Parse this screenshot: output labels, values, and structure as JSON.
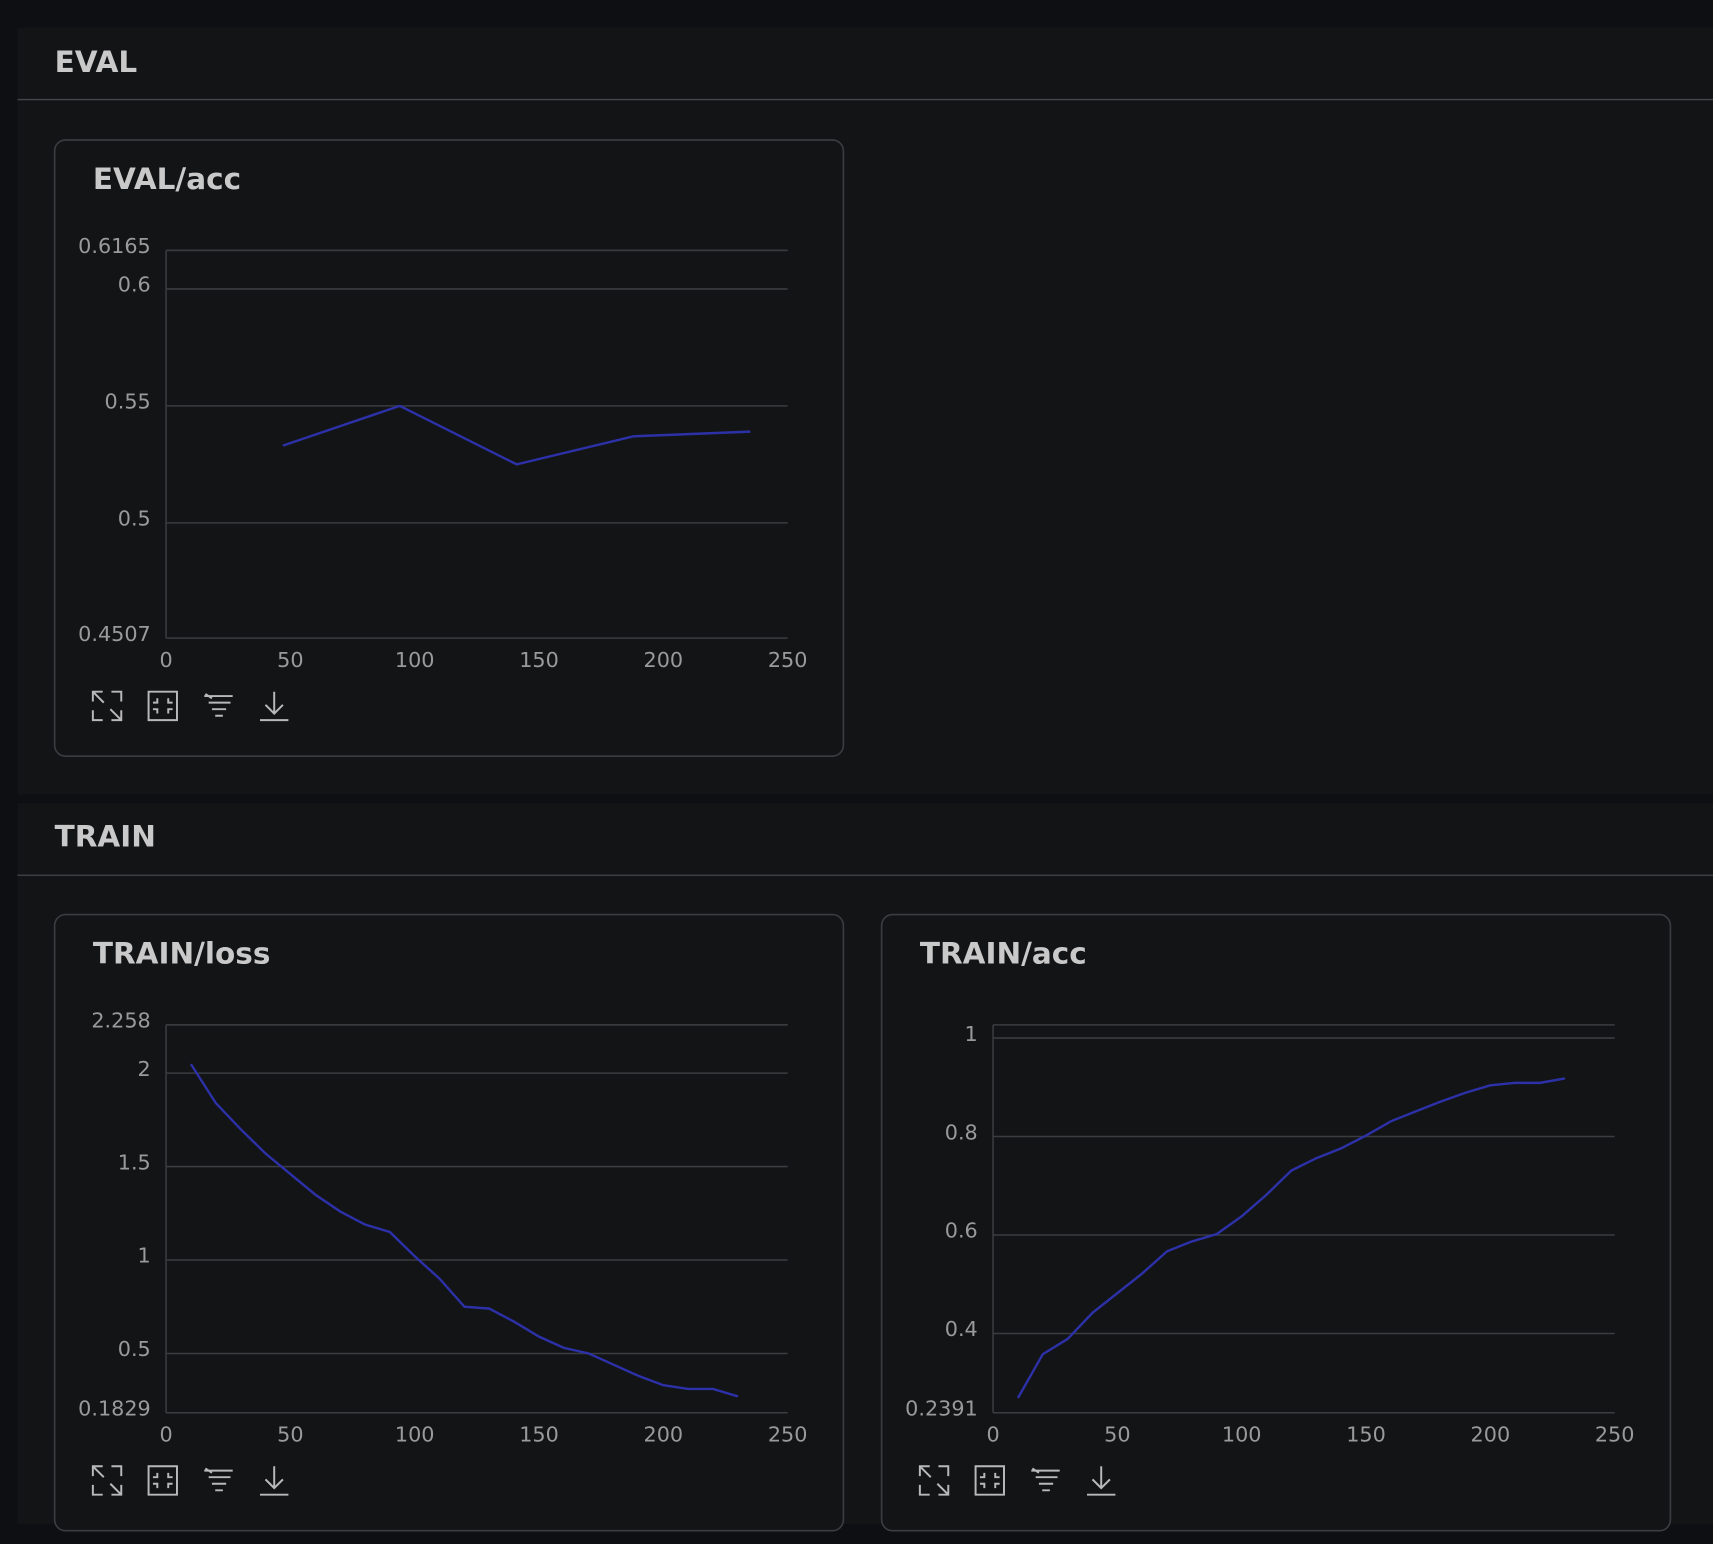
{
  "sections": [
    {
      "title": "EVAL"
    },
    {
      "title": "TRAIN"
    }
  ],
  "chart_data": [
    {
      "type": "line",
      "title": "EVAL/acc",
      "color": "#2d31a8",
      "grid": true,
      "x": [
        47,
        94,
        141,
        188,
        235
      ],
      "values": [
        0.533,
        0.55,
        0.525,
        0.537,
        0.539
      ],
      "xlim": [
        0,
        250
      ],
      "xticks": [
        0,
        50,
        100,
        150,
        200,
        250
      ],
      "ylim": [
        0.4507,
        0.6165
      ],
      "yticks": [
        0.4507,
        0.5,
        0.55,
        0.6,
        0.6165
      ]
    },
    {
      "type": "line",
      "title": "TRAIN/loss",
      "color": "#2d31a8",
      "grid": true,
      "x": [
        10,
        20,
        30,
        40,
        50,
        60,
        70,
        80,
        90,
        100,
        110,
        120,
        130,
        140,
        150,
        160,
        170,
        180,
        190,
        200,
        210,
        220,
        230
      ],
      "values": [
        2.048,
        1.84,
        1.7,
        1.57,
        1.46,
        1.35,
        1.26,
        1.19,
        1.15,
        1.02,
        0.9,
        0.75,
        0.74,
        0.67,
        0.59,
        0.53,
        0.5,
        0.44,
        0.38,
        0.33,
        0.31,
        0.31,
        0.27
      ],
      "xlim": [
        0,
        250
      ],
      "xticks": [
        0,
        50,
        100,
        150,
        200,
        250
      ],
      "ylim": [
        0.1829,
        2.258
      ],
      "yticks": [
        0.1829,
        0.5,
        1,
        1.5,
        2,
        2.258
      ]
    },
    {
      "type": "line",
      "title": "TRAIN/acc",
      "color": "#2d31a8",
      "grid": true,
      "x": [
        10,
        20,
        30,
        40,
        50,
        60,
        70,
        80,
        90,
        100,
        110,
        120,
        130,
        140,
        150,
        160,
        170,
        180,
        190,
        200,
        210,
        220,
        230
      ],
      "values": [
        0.269,
        0.358,
        0.389,
        0.442,
        0.482,
        0.522,
        0.567,
        0.587,
        0.602,
        0.638,
        0.682,
        0.731,
        0.756,
        0.776,
        0.802,
        0.831,
        0.851,
        0.871,
        0.889,
        0.904,
        0.909,
        0.909,
        0.918
      ],
      "xlim": [
        0,
        250
      ],
      "xticks": [
        0,
        50,
        100,
        150,
        200,
        250
      ],
      "ylim": [
        0.2391,
        1.0267
      ],
      "yticks": [
        0.2391,
        0.4,
        0.6,
        0.8,
        1
      ]
    }
  ]
}
